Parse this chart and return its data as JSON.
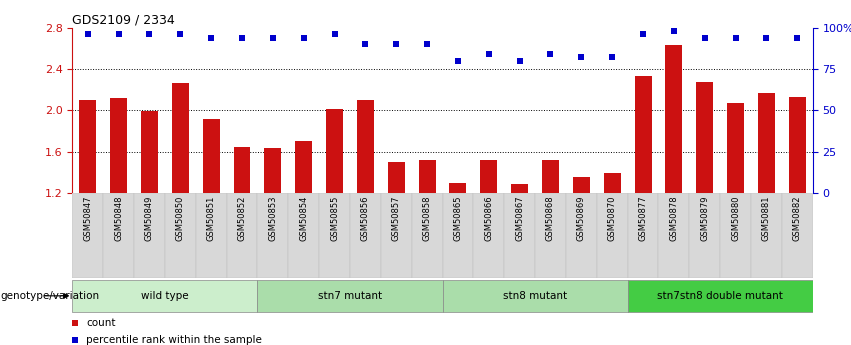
{
  "title": "GDS2109 / 2334",
  "samples": [
    "GSM50847",
    "GSM50848",
    "GSM50849",
    "GSM50850",
    "GSM50851",
    "GSM50852",
    "GSM50853",
    "GSM50854",
    "GSM50855",
    "GSM50856",
    "GSM50857",
    "GSM50858",
    "GSM50865",
    "GSM50866",
    "GSM50867",
    "GSM50868",
    "GSM50869",
    "GSM50870",
    "GSM50877",
    "GSM50878",
    "GSM50879",
    "GSM50880",
    "GSM50881",
    "GSM50882"
  ],
  "bar_values": [
    2.1,
    2.12,
    1.99,
    2.26,
    1.92,
    1.65,
    1.64,
    1.7,
    2.01,
    2.1,
    1.5,
    1.52,
    1.3,
    1.52,
    1.29,
    1.52,
    1.36,
    1.4,
    2.33,
    2.63,
    2.27,
    2.07,
    2.17,
    2.13
  ],
  "percentile_values": [
    96,
    96,
    96,
    96,
    94,
    94,
    94,
    94,
    96,
    90,
    90,
    90,
    80,
    84,
    80,
    84,
    82,
    82,
    96,
    98,
    94,
    94,
    94,
    94
  ],
  "bar_color": "#cc1111",
  "dot_color": "#0000cc",
  "groups": [
    {
      "label": "wild type",
      "start": 0,
      "end": 6,
      "color": "#cceecc"
    },
    {
      "label": "stn7 mutant",
      "start": 6,
      "end": 12,
      "color": "#aaddaa"
    },
    {
      "label": "stn8 mutant",
      "start": 12,
      "end": 18,
      "color": "#aaddaa"
    },
    {
      "label": "stn7stn8 double mutant",
      "start": 18,
      "end": 24,
      "color": "#44bb44"
    }
  ],
  "ylim_left": [
    1.2,
    2.8
  ],
  "ylim_right": [
    0,
    100
  ],
  "yticks_left": [
    1.2,
    1.6,
    2.0,
    2.4,
    2.8
  ],
  "yticks_right": [
    0,
    25,
    50,
    75,
    100
  ],
  "yticklabels_right": [
    "0",
    "25",
    "50",
    "75",
    "100%"
  ],
  "xlabel_group": "genotype/variation",
  "legend_items": [
    {
      "label": "count",
      "color": "#cc1111"
    },
    {
      "label": "percentile rank within the sample",
      "color": "#0000cc"
    }
  ],
  "tick_label_color_left": "#cc1111",
  "tick_label_color_right": "#0000cc",
  "ybase": 1.2
}
